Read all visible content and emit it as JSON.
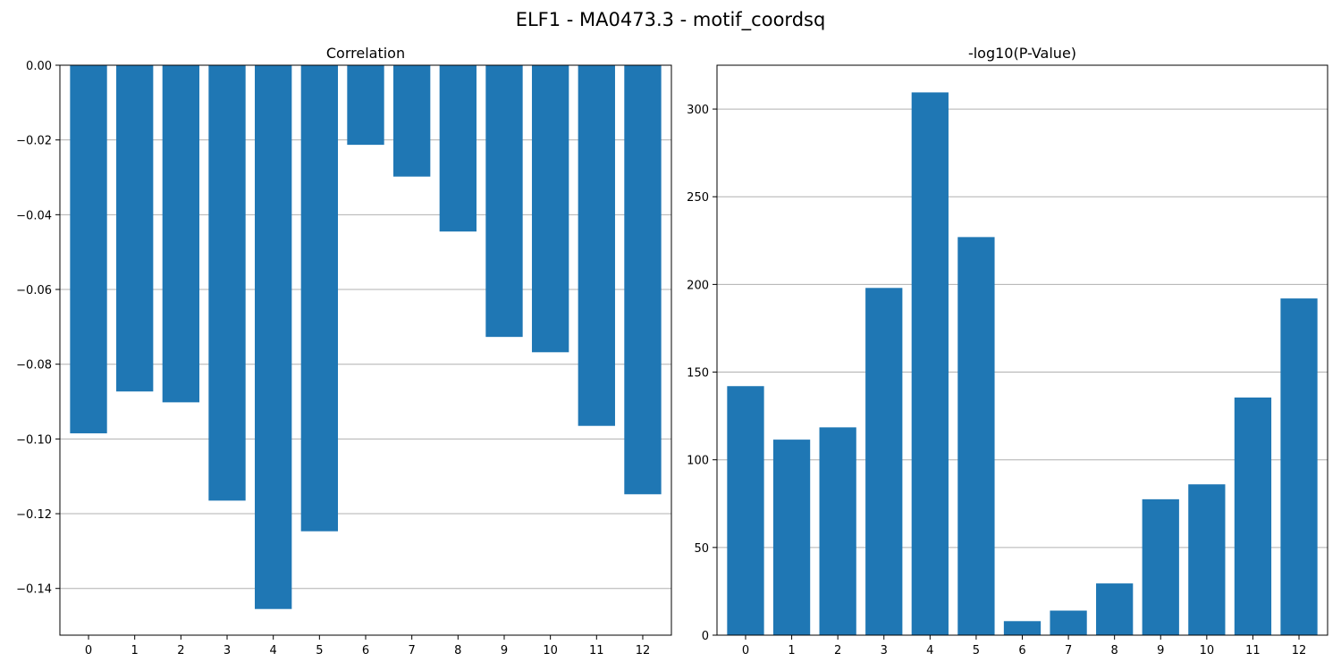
{
  "figure_title": "ELF1 - MA0473.3 - motif_coordsq",
  "colors": {
    "bar": "#1f77b4",
    "grid": "#b0b0b0",
    "axis": "#000000"
  },
  "chart_data": [
    {
      "type": "bar",
      "title": "Correlation",
      "xlabel": "",
      "ylabel": "",
      "categories": [
        "0",
        "1",
        "2",
        "3",
        "4",
        "5",
        "6",
        "7",
        "8",
        "9",
        "10",
        "11",
        "12"
      ],
      "values": [
        -0.0985,
        -0.0873,
        -0.0902,
        -0.1165,
        -0.1455,
        -0.1247,
        -0.0213,
        -0.0298,
        -0.0445,
        -0.0727,
        -0.0768,
        -0.0965,
        -0.1148
      ],
      "ylim": [
        -0.1525,
        0.0
      ],
      "yticks": [
        0.0,
        -0.02,
        -0.04,
        -0.06,
        -0.08,
        -0.1,
        -0.12,
        -0.14
      ],
      "ytick_labels": [
        "0.00",
        "−0.02",
        "−0.04",
        "−0.06",
        "−0.08",
        "−0.10",
        "−0.12",
        "−0.14"
      ],
      "grid": "y"
    },
    {
      "type": "bar",
      "title": "-log10(P-Value)",
      "xlabel": "",
      "ylabel": "",
      "categories": [
        "0",
        "1",
        "2",
        "3",
        "4",
        "5",
        "6",
        "7",
        "8",
        "9",
        "10",
        "11",
        "12"
      ],
      "values": [
        142,
        111.5,
        118.5,
        198,
        309.5,
        227,
        8,
        14,
        29.5,
        77.5,
        86,
        135.5,
        192
      ],
      "ylim": [
        0,
        325
      ],
      "yticks": [
        0,
        50,
        100,
        150,
        200,
        250,
        300
      ],
      "ytick_labels": [
        "0",
        "50",
        "100",
        "150",
        "200",
        "250",
        "300"
      ],
      "grid": "y"
    }
  ]
}
